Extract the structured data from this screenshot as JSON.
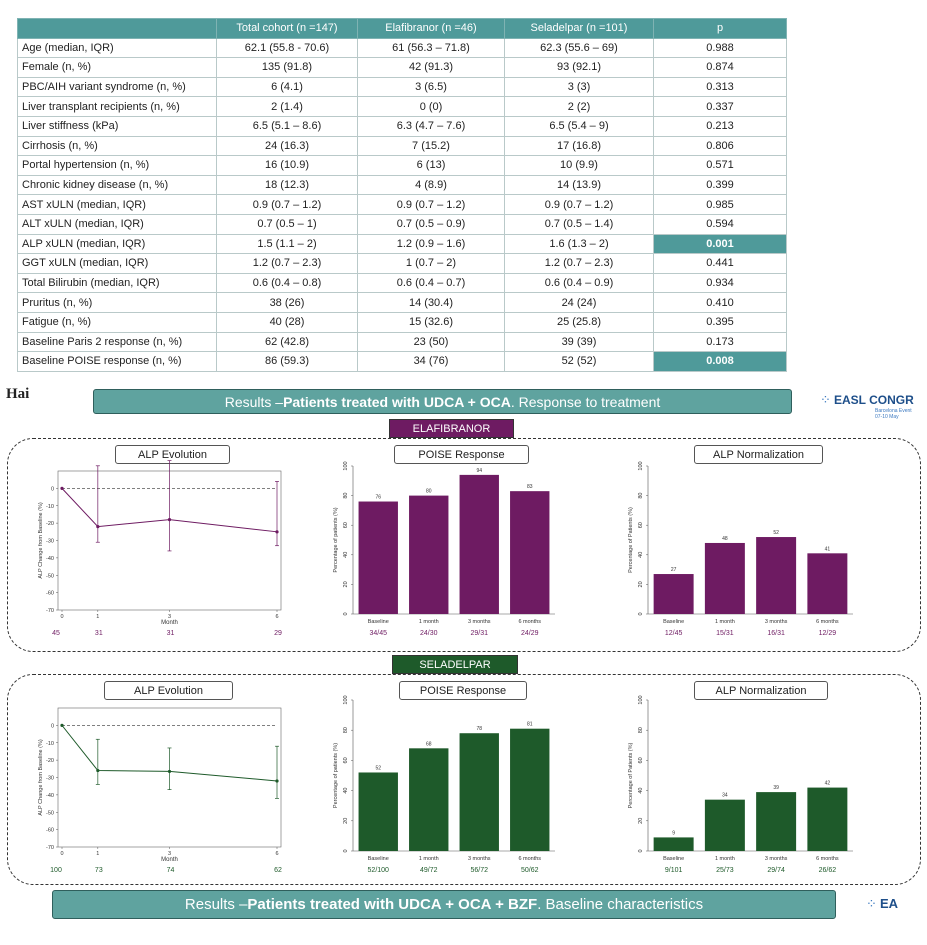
{
  "table": {
    "headers": [
      "",
      "Total cohort (n =147)",
      "Elafibranor (n =46)",
      "Seladelpar (n =101)",
      "p"
    ],
    "rows": [
      [
        "Age (median, IQR)",
        "62.1 (55.8 - 70.6)",
        "61 (56.3 – 71.8)",
        "62.3 (55.6 – 69)",
        "0.988"
      ],
      [
        "Female (n, %)",
        "135 (91.8)",
        "42 (91.3)",
        "93 (92.1)",
        "0.874"
      ],
      [
        "PBC/AIH variant syndrome (n, %)",
        "6 (4.1)",
        "3 (6.5)",
        "3 (3)",
        "0.313"
      ],
      [
        "Liver transplant recipients (n, %)",
        "2 (1.4)",
        "0 (0)",
        "2 (2)",
        "0.337"
      ],
      [
        "Liver stiffness (kPa)",
        "6.5 (5.1 – 8.6)",
        "6.3 (4.7 – 7.6)",
        "6.5 (5.4 – 9)",
        "0.213"
      ],
      [
        "Cirrhosis (n, %)",
        "24 (16.3)",
        "7 (15.2)",
        "17 (16.8)",
        "0.806"
      ],
      [
        "Portal hypertension (n, %)",
        "16 (10.9)",
        "6 (13)",
        "10 (9.9)",
        "0.571"
      ],
      [
        "Chronic kidney disease (n, %)",
        "18 (12.3)",
        "4 (8.9)",
        "14 (13.9)",
        "0.399"
      ],
      [
        "AST xULN (median, IQR)",
        "0.9 (0.7 – 1.2)",
        "0.9 (0.7 – 1.2)",
        "0.9 (0.7 – 1.2)",
        "0.985"
      ],
      [
        "ALT xULN (median, IQR)",
        "0.7 (0.5 – 1)",
        "0.7 (0.5 – 0.9)",
        "0.7 (0.5 – 1.4)",
        "0.594"
      ],
      [
        "ALP xULN (median, IQR)",
        "1.5 (1.1 – 2)",
        "1.2 (0.9 – 1.6)",
        "1.6 (1.3 – 2)",
        "0.001"
      ],
      [
        "GGT xULN (median, IQR)",
        "1.2 (0.7 – 2.3)",
        "1 (0.7 – 2)",
        "1.2 (0.7 – 2.3)",
        "0.441"
      ],
      [
        "Total Bilirubin (median, IQR)",
        "0.6 (0.4 – 0.8)",
        "0.6 (0.4 – 0.7)",
        "0.6 (0.4 – 0.9)",
        "0.934"
      ],
      [
        "Pruritus (n, %)",
        "38 (26)",
        "14 (30.4)",
        "24 (24)",
        "0.410"
      ],
      [
        "Fatigue (n, %)",
        "40 (28)",
        "15 (32.6)",
        "25 (25.8)",
        "0.395"
      ],
      [
        "Baseline Paris 2 response (n, %)",
        "62 (42.8)",
        "23 (50)",
        "39 (39)",
        "0.173"
      ],
      [
        "Baseline POISE response (n, %)",
        "86 (59.3)",
        "34 (76)",
        "52 (52)",
        "0.008"
      ]
    ],
    "highlight_p": [
      "0.001",
      "0.008"
    ],
    "highlight_color": "#4f9a9a"
  },
  "hai": "Hai",
  "banner1": {
    "prefix": "Results – ",
    "bold": "Patients treated with UDCA + OCA",
    "suffix": ". Response to treatment"
  },
  "banner2": {
    "prefix": "Results – ",
    "bold": "Patients treated with UDCA + OCA + BZF",
    "suffix": ". Baseline characteristics"
  },
  "logo1": {
    "text": "EASL CONGR",
    "sub1": "Barcelona Event",
    "sub2": "07-10 May"
  },
  "logo2": {
    "text": "EA"
  },
  "colors": {
    "elafibranor": "#6e1b62",
    "seladelpar": "#1e5a2a",
    "banner": "#5fa39f"
  },
  "chart_data": [
    {
      "group": "ELAFIBRANOR",
      "type": "line",
      "title": "ALP Evolution",
      "ylabel": "ALP Change from Baseline (%)",
      "xlabel": "Month",
      "ylim": [
        -70,
        10
      ],
      "yticks": [
        0,
        -10,
        -20,
        -30,
        -40,
        -50,
        -60,
        -70
      ],
      "x": [
        0,
        1,
        3,
        6
      ],
      "xticks": [
        0,
        1,
        3,
        6
      ],
      "y": [
        0,
        -22,
        -18,
        -25
      ],
      "err_low": [
        0,
        -31,
        -36,
        -33
      ],
      "err_high": [
        0,
        13,
        16,
        4
      ],
      "n": [
        "45",
        "31",
        "31",
        "29"
      ],
      "reference_line": 0
    },
    {
      "group": "ELAFIBRANOR",
      "type": "bar",
      "title": "POISE Response",
      "ylabel": "Percentage of patients (%)",
      "ylim": [
        0,
        100
      ],
      "yticks": [
        0,
        20,
        40,
        60,
        80,
        100
      ],
      "categories": [
        "Baseline",
        "1 month",
        "3 months",
        "6 months"
      ],
      "values": [
        76,
        80,
        94,
        83
      ],
      "counts": [
        "34/45",
        "24/30",
        "29/31",
        "24/29"
      ]
    },
    {
      "group": "ELAFIBRANOR",
      "type": "bar",
      "title": "ALP Normalization",
      "ylabel": "Percentage of Patients (%)",
      "ylim": [
        0,
        100
      ],
      "yticks": [
        0,
        20,
        40,
        60,
        80,
        100
      ],
      "categories": [
        "Baseline",
        "1 month",
        "3 months",
        "6 months"
      ],
      "values": [
        27,
        48,
        52,
        41
      ],
      "counts": [
        "12/45",
        "15/31",
        "16/31",
        "12/29"
      ]
    },
    {
      "group": "SELADELPAR",
      "type": "line",
      "title": "ALP Evolution",
      "ylabel": "ALP Change from Baseline (%)",
      "xlabel": "Month",
      "ylim": [
        -70,
        10
      ],
      "yticks": [
        0,
        -10,
        -20,
        -30,
        -40,
        -50,
        -60,
        -70
      ],
      "x": [
        0,
        1,
        3,
        6
      ],
      "xticks": [
        0,
        1,
        3,
        6
      ],
      "y": [
        0,
        -26,
        -26.5,
        -32
      ],
      "err_low": [
        0,
        -34,
        -37,
        -42
      ],
      "err_high": [
        0,
        -8,
        -13,
        -12
      ],
      "n": [
        "100",
        "73",
        "74",
        "62"
      ],
      "reference_line": 0
    },
    {
      "group": "SELADELPAR",
      "type": "bar",
      "title": "POISE Response",
      "ylabel": "Percentage of patients (%)",
      "ylim": [
        0,
        100
      ],
      "yticks": [
        0,
        20,
        40,
        60,
        80,
        100
      ],
      "categories": [
        "Baseline",
        "1 month",
        "3 months",
        "6 months"
      ],
      "values": [
        52,
        68,
        78,
        81
      ],
      "counts": [
        "52/100",
        "49/72",
        "56/72",
        "50/62"
      ]
    },
    {
      "group": "SELADELPAR",
      "type": "bar",
      "title": "ALP Normalization",
      "ylabel": "Percentage of Patients (%)",
      "ylim": [
        0,
        100
      ],
      "yticks": [
        0,
        20,
        40,
        60,
        80,
        100
      ],
      "categories": [
        "Baseline",
        "1 month",
        "3 months",
        "6 months"
      ],
      "values": [
        9,
        34,
        39,
        42
      ],
      "counts": [
        "9/101",
        "25/73",
        "29/74",
        "26/62"
      ]
    }
  ]
}
